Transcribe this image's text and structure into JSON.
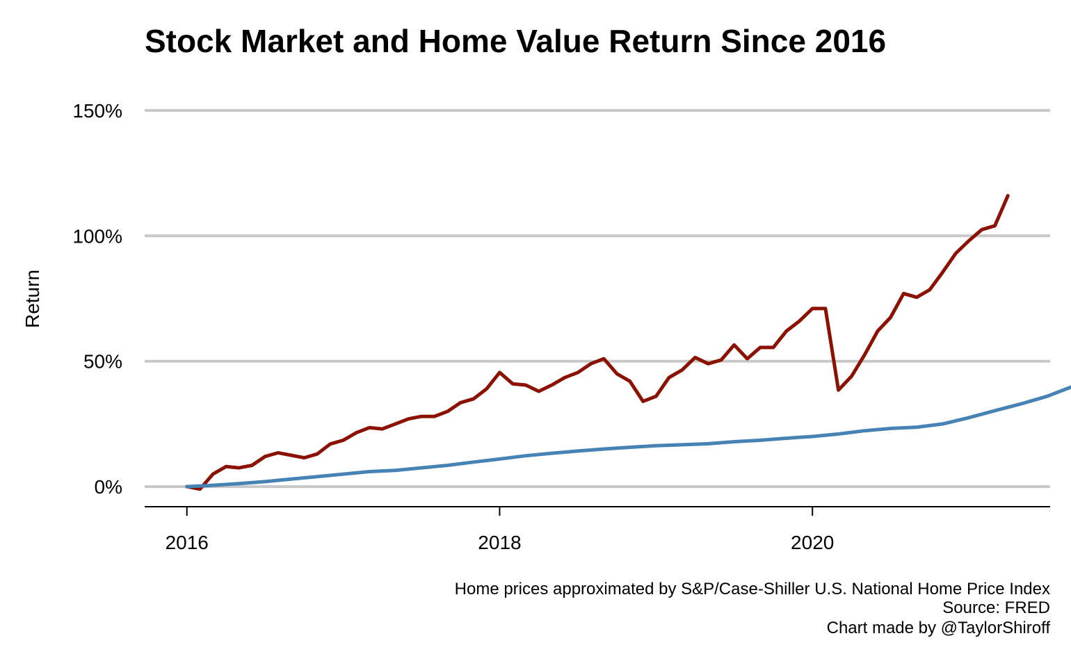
{
  "chart_data": {
    "type": "line",
    "title": "Stock Market and Home Value Return Since 2016",
    "xlabel": "",
    "ylabel": "Return",
    "x_unit": "year (decimal)",
    "xlim": [
      2015.73,
      2021.52
    ],
    "ylim": [
      -8,
      158
    ],
    "x_ticks": [
      {
        "value": 2016,
        "label": "2016"
      },
      {
        "value": 2018,
        "label": "2018"
      },
      {
        "value": 2020,
        "label": "2020"
      }
    ],
    "y_ticks": [
      {
        "value": 0,
        "label": "0%"
      },
      {
        "value": 50,
        "label": "50%"
      },
      {
        "value": 100,
        "label": "100%"
      },
      {
        "value": 150,
        "label": "150%"
      }
    ],
    "grid": "horizontal",
    "legend": "none",
    "series": [
      {
        "name": "Stock Market",
        "color": "#8b1203",
        "x_start": 2016.0,
        "x_step": 0.08333,
        "values": [
          0,
          -1,
          5,
          8,
          7.5,
          8.5,
          12,
          13.5,
          12.5,
          11.5,
          13,
          17,
          18.5,
          21.5,
          23.5,
          23,
          25,
          27,
          28,
          28,
          30,
          33.5,
          35,
          39,
          45.5,
          41,
          40.5,
          38,
          40.5,
          43.5,
          45.5,
          49,
          51,
          45,
          42,
          34,
          36,
          43.5,
          46.5,
          51.5,
          49,
          50.5,
          56.5,
          51,
          55.5,
          55.5,
          62,
          66,
          71,
          71,
          38.5,
          44,
          52.5,
          62,
          67.5,
          77,
          75.5,
          78.5,
          85.5,
          93,
          98,
          102.5,
          104,
          116
        ]
      },
      {
        "name": "Home Value",
        "color": "#4682b4",
        "x_start": 2016.0,
        "x_step": 0.16667,
        "values": [
          0,
          0.5,
          1.2,
          2,
          3,
          4,
          5,
          6,
          6.5,
          7.5,
          8.5,
          9.8,
          11,
          12.3,
          13.3,
          14.2,
          15,
          15.7,
          16.3,
          16.7,
          17.1,
          17.9,
          18.5,
          19.3,
          20,
          21,
          22.3,
          23.2,
          23.7,
          25,
          27.5,
          30.3,
          33,
          36,
          40
        ]
      }
    ]
  },
  "caption": {
    "line1": "Home prices approximated by S&P/Case-Shiller U.S. National Home Price Index",
    "line2": "Source: FRED",
    "line3": "Chart made by @TaylorShiroff"
  }
}
